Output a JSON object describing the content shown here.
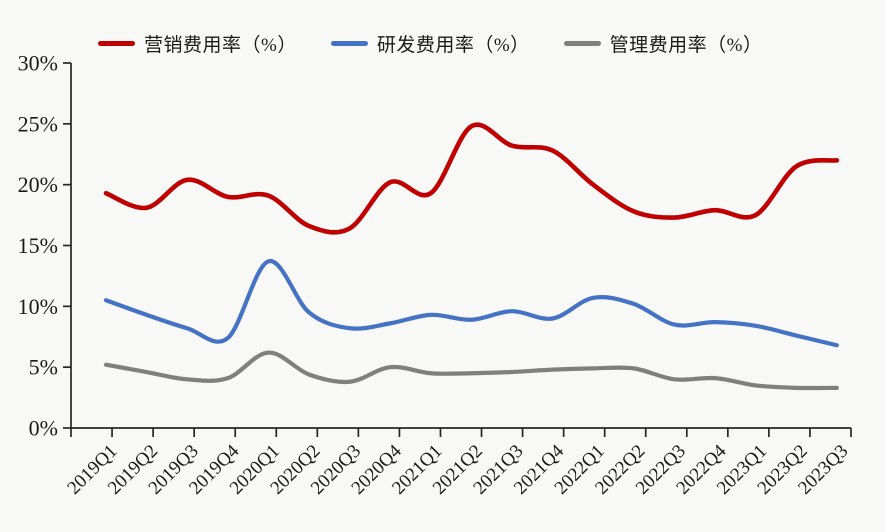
{
  "chart_data": {
    "type": "line",
    "title": "",
    "categories": [
      "2019Q1",
      "2019Q2",
      "2019Q3",
      "2019Q4",
      "2020Q1",
      "2020Q2",
      "2020Q3",
      "2020Q4",
      "2021Q1",
      "2021Q2",
      "2021Q3",
      "2021Q4",
      "2022Q1",
      "2022Q2",
      "2022Q3",
      "2022Q4",
      "2023Q1",
      "2023Q2",
      "2023Q3"
    ],
    "series": [
      {
        "name": "营销费用率（%）",
        "color": "#C00000",
        "values": [
          19.3,
          18.1,
          20.4,
          19.0,
          19.1,
          16.6,
          16.4,
          20.2,
          19.3,
          24.8,
          23.2,
          22.8,
          20.0,
          17.8,
          17.3,
          17.9,
          17.5,
          21.5,
          22.0
        ]
      },
      {
        "name": "研发费用率（%）",
        "color": "#4472C4",
        "values": [
          10.5,
          9.3,
          8.2,
          7.4,
          13.7,
          9.5,
          8.2,
          8.6,
          9.3,
          8.9,
          9.6,
          9.0,
          10.7,
          10.2,
          8.5,
          8.7,
          8.4,
          7.6,
          6.8
        ]
      },
      {
        "name": "管理费用率（%）",
        "color": "#7F7F7F",
        "values": [
          5.2,
          4.6,
          4.0,
          4.1,
          6.2,
          4.4,
          3.8,
          5.0,
          4.5,
          4.5,
          4.6,
          4.8,
          4.9,
          4.9,
          4.0,
          4.1,
          3.5,
          3.3,
          3.3
        ]
      }
    ],
    "xlabel": "",
    "ylabel": "",
    "ylim": [
      0,
      30
    ],
    "ytick_step": 5,
    "ytick_labels": [
      "0%",
      "5%",
      "10%",
      "15%",
      "20%",
      "25%",
      "30%"
    ],
    "legend_position": "top",
    "grid": false,
    "smooth": true
  },
  "colors": {
    "background": "#F8F8F6",
    "axis": "#262626",
    "text": "#1A1A1A"
  }
}
